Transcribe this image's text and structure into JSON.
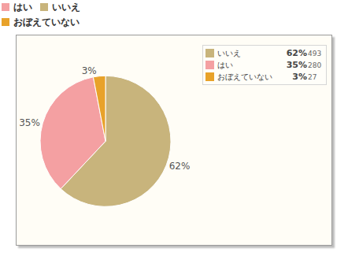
{
  "chart_data": {
    "type": "pie",
    "categories": [
      "いいえ",
      "はい",
      "おぼえていない"
    ],
    "values": [
      62,
      35,
      3
    ],
    "value_labels": [
      "62%",
      "35%",
      "3%"
    ],
    "counts": [
      493,
      280,
      27
    ],
    "colors": [
      "#c8b47c",
      "#f4a0a2",
      "#e8a22a"
    ],
    "header_legend": [
      "はい",
      "いいえ",
      "おぼえていない"
    ],
    "data_labels": true
  }
}
